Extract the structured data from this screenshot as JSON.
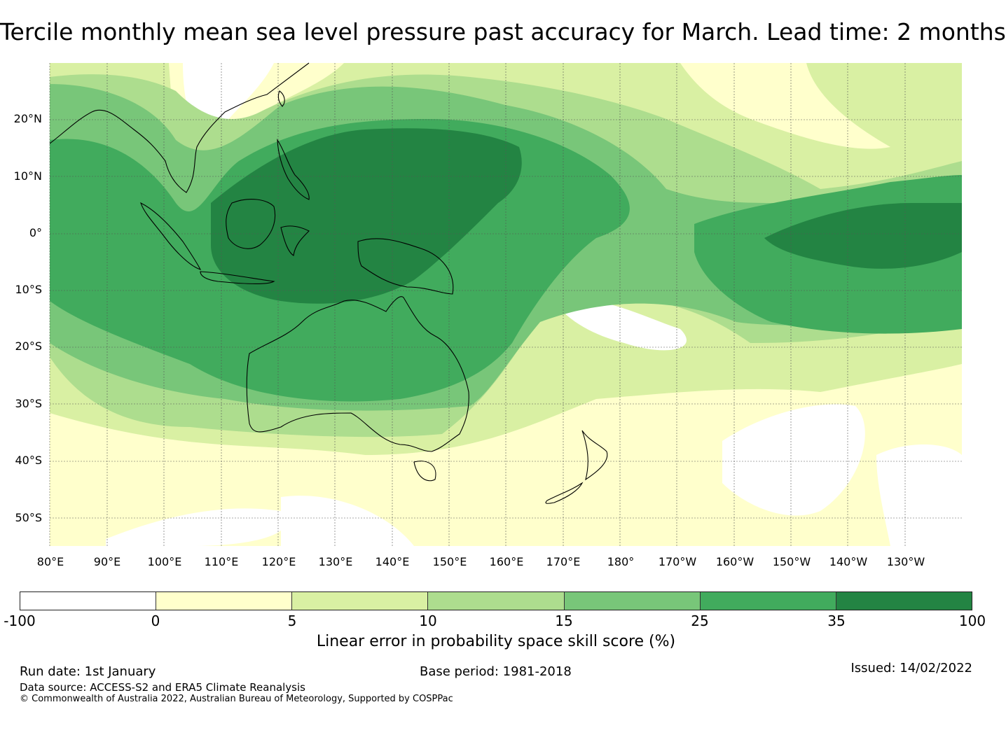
{
  "title": "Tercile monthly mean sea level pressure past accuracy for March. Lead time: 2 months",
  "map": {
    "lat_labels": [
      "20°N",
      "10°N",
      "0°",
      "10°S",
      "20°S",
      "30°S",
      "40°S",
      "50°S"
    ],
    "lon_labels": [
      "80°E",
      "90°E",
      "100°E",
      "110°E",
      "120°E",
      "130°E",
      "140°E",
      "150°E",
      "160°E",
      "170°E",
      "180°",
      "170°W",
      "160°W",
      "150°W",
      "140°W",
      "130°W"
    ],
    "landmasses": [
      "Australia",
      "New Guinea",
      "Borneo",
      "Sumatra",
      "New Zealand",
      "Tasmania",
      "Philippines",
      "Taiwan",
      "Sulawesi",
      "Java"
    ]
  },
  "colorbar": {
    "tick_labels": [
      "-100",
      "0",
      "5",
      "10",
      "15",
      "25",
      "35",
      "100"
    ],
    "colors": [
      "#ffffff",
      "#ffffcc",
      "#d9f0a3",
      "#addd8e",
      "#78c679",
      "#41ab5d",
      "#238443"
    ],
    "label": "Linear error in probability space skill score (%)"
  },
  "footer": {
    "run_date": "Run date: 1st January",
    "base_period": "Base period: 1981-2018",
    "issued": "Issued: 14/02/2022",
    "data_source": "Data source: ACCESS-S2 and ERA5 Climate Reanalysis",
    "copyright": "© Commonwealth of Australia 2022, Australian Bureau of Meteorology, Supported by COSPPac"
  }
}
